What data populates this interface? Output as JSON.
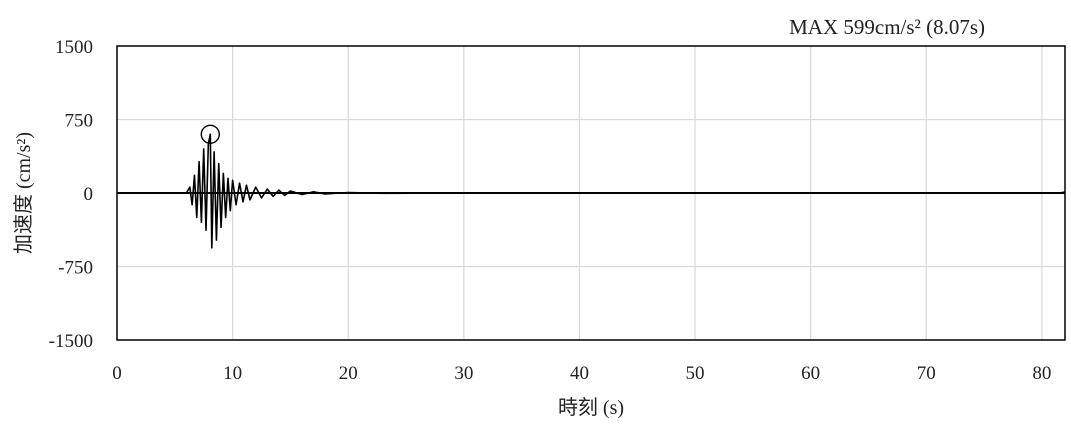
{
  "chart_data": {
    "type": "line",
    "title": "",
    "annotation": "MAX  599cm/s² (8.07s)",
    "xlabel": "時刻 (s)",
    "ylabel": "加速度 (cm/s²)",
    "xlim": [
      0,
      82
    ],
    "ylim": [
      -1500,
      1500
    ],
    "xticks": [
      0,
      10,
      20,
      30,
      40,
      50,
      60,
      70,
      80
    ],
    "yticks": [
      1500,
      750,
      0,
      -750,
      -1500
    ],
    "xtick_labels": [
      "0",
      "10",
      "20",
      "30",
      "40",
      "50",
      "60",
      "70",
      "80"
    ],
    "ytick_labels": [
      "1500",
      "750",
      "0",
      "-750",
      "-1500"
    ],
    "grid": "vertical",
    "legend": "none",
    "peak": {
      "x": 8.07,
      "y": 599
    },
    "series": [
      {
        "color": "#000000",
        "x": [
          0,
          6.0,
          6.3,
          6.5,
          6.7,
          6.9,
          7.1,
          7.3,
          7.5,
          7.7,
          7.9,
          8.07,
          8.2,
          8.4,
          8.6,
          8.8,
          9.0,
          9.2,
          9.4,
          9.6,
          9.8,
          10.0,
          10.3,
          10.6,
          10.9,
          11.2,
          11.5,
          12.0,
          12.5,
          13.0,
          13.5,
          14.0,
          14.5,
          15.0,
          16.0,
          17.0,
          18.0,
          20.0,
          23.0,
          30.0,
          50.0,
          81.5,
          82.0
        ],
        "y": [
          0,
          0,
          60,
          -120,
          180,
          -250,
          320,
          -300,
          450,
          -380,
          500,
          599,
          -560,
          420,
          -480,
          300,
          -350,
          200,
          -250,
          150,
          -180,
          130,
          -120,
          100,
          -90,
          80,
          -70,
          60,
          -50,
          40,
          -35,
          30,
          -25,
          20,
          -15,
          12,
          -10,
          5,
          -3,
          0,
          0,
          0,
          10
        ]
      }
    ]
  }
}
